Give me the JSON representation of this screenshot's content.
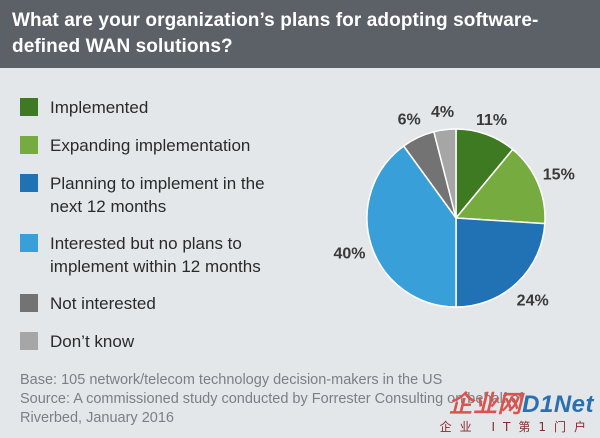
{
  "title": "What are your organization’s plans for adopting software-defined WAN solutions?",
  "title_lines": [
    "What are your organization’s plans for adopting software-",
    "defined WAN solutions?"
  ],
  "colors": {
    "header_bg": "#5c6168",
    "page_bg": "#e3e7ea",
    "implemented": "#3e7a22",
    "expanding": "#76ac3f",
    "planning": "#2171b5",
    "interested": "#389fd9",
    "not_interested": "#737373",
    "dont_know": "#a6a6a6"
  },
  "legend": [
    {
      "lines": [
        "Implemented"
      ],
      "color": "#3e7a22"
    },
    {
      "lines": [
        "Expanding implementation"
      ],
      "color": "#76ac3f"
    },
    {
      "lines": [
        "Planning to implement in the",
        "next 12 months"
      ],
      "color": "#2171b5"
    },
    {
      "lines": [
        "Interested but no plans to",
        "implement within 12 months"
      ],
      "color": "#389fd9"
    },
    {
      "lines": [
        "Not interested"
      ],
      "color": "#737373"
    },
    {
      "lines": [
        "Don’t know"
      ],
      "color": "#a6a6a6"
    }
  ],
  "chart_data": {
    "type": "pie",
    "categories": [
      "Implemented",
      "Expanding implementation",
      "Planning to implement in the next 12 months",
      "Interested but no plans to implement within 12 months",
      "Not interested",
      "Don’t know"
    ],
    "values": [
      11,
      15,
      24,
      40,
      6,
      4
    ],
    "labels": [
      "11%",
      "15%",
      "24%",
      "40%",
      "6%",
      "4%"
    ],
    "colors": [
      "#3e7a22",
      "#76ac3f",
      "#2171b5",
      "#389fd9",
      "#737373",
      "#a6a6a6"
    ],
    "start": "12 o'clock",
    "direction": "clockwise"
  },
  "footer": {
    "base": "Base: 105 network/telecom technology decision-makers in the US",
    "source": "Source: A commissioned study conducted by Forrester Consulting on behalf of",
    "source2": "Riverbed, January 2016"
  },
  "watermark": {
    "text_a": "企业网",
    "text_b": "D1Net",
    "subtext": "企业 IT第1门户"
  }
}
